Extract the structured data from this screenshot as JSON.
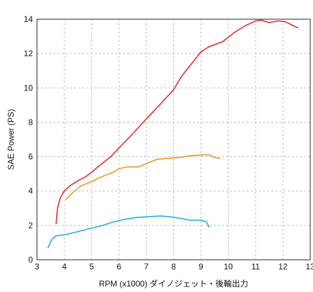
{
  "chart_data": {
    "type": "line",
    "xlabel": "RPM (x1000) ダイノジェット・後輪出力",
    "ylabel": "SAE Power (PS)",
    "xlim": [
      3,
      13
    ],
    "ylim": [
      0,
      14
    ],
    "x_ticks": [
      3,
      4,
      5,
      6,
      7,
      8,
      9,
      10,
      11,
      12,
      13
    ],
    "y_ticks": [
      0,
      2,
      4,
      6,
      8,
      10,
      12,
      14
    ],
    "grid": true,
    "legend": "none",
    "series": [
      {
        "color": "#e8262b",
        "points": [
          [
            3.7,
            2.1
          ],
          [
            3.75,
            3.0
          ],
          [
            3.85,
            3.6
          ],
          [
            4.0,
            4.0
          ],
          [
            4.2,
            4.3
          ],
          [
            4.5,
            4.6
          ],
          [
            4.8,
            4.85
          ],
          [
            5.0,
            5.1
          ],
          [
            5.3,
            5.5
          ],
          [
            5.7,
            6.0
          ],
          [
            6.0,
            6.5
          ],
          [
            6.3,
            7.0
          ],
          [
            6.6,
            7.5
          ],
          [
            7.0,
            8.2
          ],
          [
            7.3,
            8.7
          ],
          [
            7.6,
            9.2
          ],
          [
            8.0,
            9.9
          ],
          [
            8.3,
            10.7
          ],
          [
            8.7,
            11.5
          ],
          [
            9.0,
            12.1
          ],
          [
            9.3,
            12.4
          ],
          [
            9.8,
            12.7
          ],
          [
            10.2,
            13.2
          ],
          [
            10.6,
            13.6
          ],
          [
            11.0,
            13.9
          ],
          [
            11.2,
            13.95
          ],
          [
            11.5,
            13.8
          ],
          [
            11.8,
            13.9
          ],
          [
            12.1,
            13.85
          ],
          [
            12.4,
            13.6
          ],
          [
            12.55,
            13.5
          ]
        ]
      },
      {
        "color": "#f0921e",
        "points": [
          [
            4.05,
            3.5
          ],
          [
            4.3,
            3.9
          ],
          [
            4.6,
            4.3
          ],
          [
            5.0,
            4.55
          ],
          [
            5.4,
            4.85
          ],
          [
            5.8,
            5.1
          ],
          [
            6.0,
            5.3
          ],
          [
            6.3,
            5.4
          ],
          [
            6.7,
            5.4
          ],
          [
            7.0,
            5.6
          ],
          [
            7.4,
            5.85
          ],
          [
            7.8,
            5.9
          ],
          [
            8.2,
            5.95
          ],
          [
            8.6,
            6.05
          ],
          [
            9.0,
            6.1
          ],
          [
            9.3,
            6.1
          ],
          [
            9.5,
            5.95
          ],
          [
            9.7,
            5.9
          ]
        ]
      },
      {
        "color": "#23aee4",
        "points": [
          [
            3.4,
            0.7
          ],
          [
            3.55,
            1.2
          ],
          [
            3.7,
            1.4
          ],
          [
            4.0,
            1.45
          ],
          [
            4.4,
            1.6
          ],
          [
            4.9,
            1.8
          ],
          [
            5.4,
            2.0
          ],
          [
            5.8,
            2.2
          ],
          [
            6.2,
            2.35
          ],
          [
            6.6,
            2.45
          ],
          [
            7.0,
            2.5
          ],
          [
            7.5,
            2.55
          ],
          [
            7.9,
            2.5
          ],
          [
            8.3,
            2.4
          ],
          [
            8.6,
            2.3
          ],
          [
            9.0,
            2.3
          ],
          [
            9.2,
            2.2
          ],
          [
            9.3,
            1.9
          ]
        ]
      }
    ]
  }
}
